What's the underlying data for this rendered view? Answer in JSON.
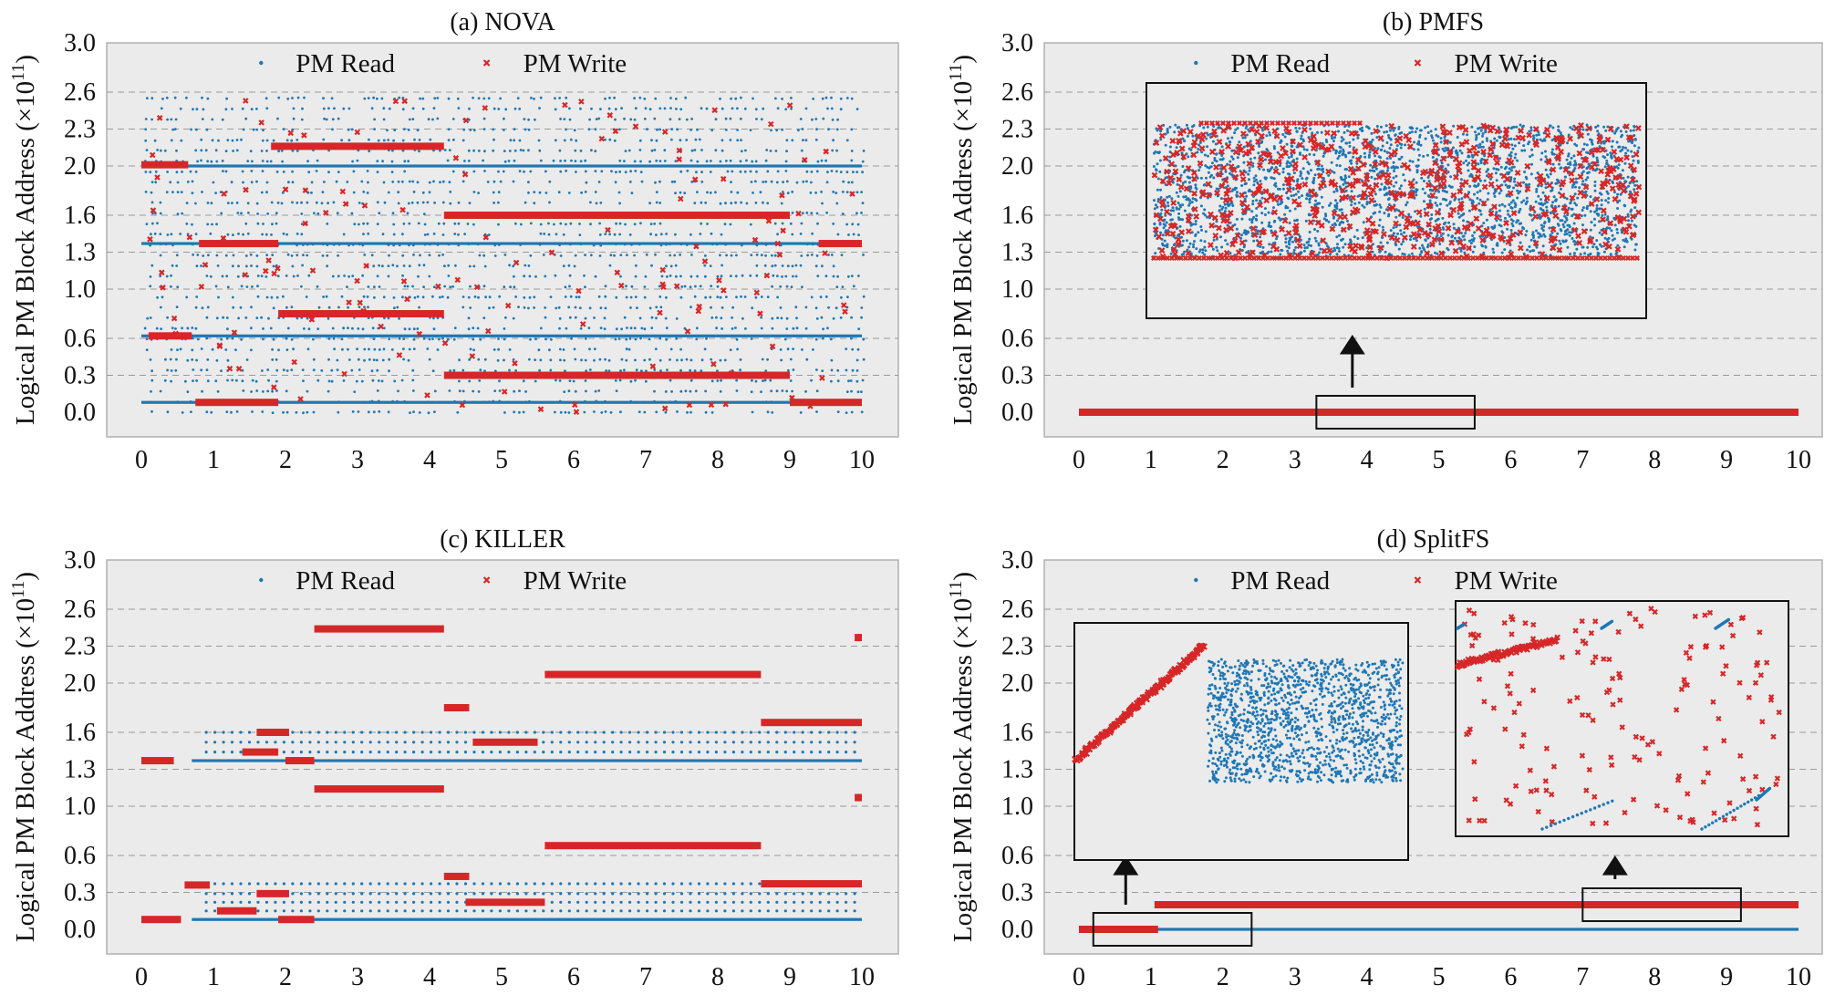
{
  "figure": {
    "legend_read": "PM Read",
    "legend_write": "PM Write",
    "ylabel_main": "Logical PM Block Address (×10",
    "ylabel_exp": "11",
    "ylabel_close": ")"
  },
  "chart_data": [
    {
      "id": "nova",
      "type": "scatter",
      "title": "(a) NOVA",
      "xticks": [
        "0",
        "1",
        "2",
        "3",
        "4",
        "5",
        "6",
        "7",
        "8",
        "9",
        "10"
      ],
      "yticks": [
        "0.0",
        "0.3",
        "0.6",
        "1.0",
        "1.3",
        "1.6",
        "2.0",
        "2.3",
        "2.6",
        "3.0"
      ],
      "xlim": [
        -0.5,
        10.5
      ],
      "ylim": [
        -0.2,
        3.0
      ],
      "grid": true,
      "legend_position": "top",
      "series": [
        {
          "name": "PM Read",
          "color": "#1f77b4",
          "marker": "dot",
          "bands_y": [
            2.0,
            1.37,
            0.62,
            0.08
          ],
          "scatter_y_range": [
            0.0,
            2.55
          ],
          "x_range": [
            0.0,
            10.0
          ]
        },
        {
          "name": "PM Write",
          "color": "#d62728",
          "marker": "x",
          "segments": [
            {
              "y": 2.01,
              "x": [
                0.0,
                0.65
              ]
            },
            {
              "y": 0.62,
              "x": [
                0.1,
                0.7
              ]
            },
            {
              "y": 1.37,
              "x": [
                0.8,
                1.9
              ]
            },
            {
              "y": 0.08,
              "x": [
                0.75,
                1.9
              ]
            },
            {
              "y": 2.16,
              "x": [
                1.8,
                4.2
              ]
            },
            {
              "y": 0.8,
              "x": [
                1.9,
                4.2
              ]
            },
            {
              "y": 1.6,
              "x": [
                4.2,
                9.0
              ]
            },
            {
              "y": 0.3,
              "x": [
                4.2,
                9.0
              ]
            },
            {
              "y": 1.37,
              "x": [
                9.4,
                10.0
              ]
            },
            {
              "y": 0.08,
              "x": [
                9.0,
                10.0
              ]
            }
          ]
        }
      ]
    },
    {
      "id": "pmfs",
      "type": "scatter",
      "title": "(b) PMFS",
      "xticks": [
        "0",
        "1",
        "2",
        "3",
        "4",
        "5",
        "6",
        "7",
        "8",
        "9",
        "10"
      ],
      "yticks": [
        "0.0",
        "0.3",
        "0.6",
        "1.0",
        "1.3",
        "1.6",
        "2.0",
        "2.3",
        "2.6",
        "3.0"
      ],
      "xlim": [
        -0.5,
        10.5
      ],
      "ylim": [
        -0.2,
        3.0
      ],
      "grid": true,
      "legend_position": "top",
      "zoom_region_x": [
        3.3,
        5.5
      ],
      "series": [
        {
          "name": "PM Read",
          "color": "#1f77b4",
          "marker": "dot",
          "y": 0.0,
          "x_range": [
            0.0,
            10.0
          ]
        },
        {
          "name": "PM Write",
          "color": "#d62728",
          "marker": "x",
          "y": 0.0,
          "x_range": [
            0.0,
            10.0
          ]
        }
      ]
    },
    {
      "id": "killer",
      "type": "scatter",
      "title": "(c) KILLER",
      "xticks": [
        "0",
        "1",
        "2",
        "3",
        "4",
        "5",
        "6",
        "7",
        "8",
        "9",
        "10"
      ],
      "yticks": [
        "0.0",
        "0.3",
        "0.6",
        "1.0",
        "1.3",
        "1.6",
        "2.0",
        "2.3",
        "2.6",
        "3.0"
      ],
      "xlim": [
        -0.5,
        10.5
      ],
      "ylim": [
        -0.2,
        3.0
      ],
      "grid": true,
      "legend_position": "top",
      "series": [
        {
          "name": "PM Read",
          "color": "#1f77b4",
          "marker": "dot",
          "bands_y": [
            1.37,
            0.08
          ],
          "dotted_rows_y": [
            1.6,
            1.52,
            1.44,
            0.37,
            0.29,
            0.22,
            0.15
          ]
        },
        {
          "name": "PM Write",
          "color": "#d62728",
          "marker": "x",
          "segments": [
            {
              "y": 1.37,
              "x": [
                0.0,
                0.45
              ]
            },
            {
              "y": 0.08,
              "x": [
                0.0,
                0.55
              ]
            },
            {
              "y": 0.36,
              "x": [
                0.6,
                0.95
              ]
            },
            {
              "y": 0.15,
              "x": [
                1.05,
                1.6
              ]
            },
            {
              "y": 0.29,
              "x": [
                1.6,
                2.05
              ]
            },
            {
              "y": 1.6,
              "x": [
                1.6,
                2.05
              ]
            },
            {
              "y": 1.44,
              "x": [
                1.4,
                1.9
              ]
            },
            {
              "y": 1.37,
              "x": [
                2.0,
                2.4
              ]
            },
            {
              "y": 0.08,
              "x": [
                1.9,
                2.4
              ]
            },
            {
              "y": 2.44,
              "x": [
                2.4,
                4.2
              ]
            },
            {
              "y": 1.14,
              "x": [
                2.4,
                4.2
              ]
            },
            {
              "y": 1.8,
              "x": [
                4.2,
                4.55
              ]
            },
            {
              "y": 0.43,
              "x": [
                4.2,
                4.55
              ]
            },
            {
              "y": 1.52,
              "x": [
                4.6,
                5.5
              ]
            },
            {
              "y": 0.22,
              "x": [
                4.5,
                5.6
              ]
            },
            {
              "y": 2.07,
              "x": [
                5.6,
                8.6
              ]
            },
            {
              "y": 0.68,
              "x": [
                5.6,
                8.6
              ]
            },
            {
              "y": 1.68,
              "x": [
                8.6,
                10.0
              ]
            },
            {
              "y": 0.37,
              "x": [
                8.6,
                10.0
              ]
            },
            {
              "y": 2.37,
              "x": [
                9.9,
                10.0
              ]
            },
            {
              "y": 1.07,
              "x": [
                9.9,
                10.0
              ]
            }
          ]
        }
      ]
    },
    {
      "id": "splitfs",
      "type": "scatter",
      "title": "(d) SplitFS",
      "xticks": [
        "0",
        "1",
        "2",
        "3",
        "4",
        "5",
        "6",
        "7",
        "8",
        "9",
        "10"
      ],
      "yticks": [
        "0.0",
        "0.3",
        "0.6",
        "1.0",
        "1.3",
        "1.6",
        "2.0",
        "2.3",
        "2.6",
        "3.0"
      ],
      "xlim": [
        -0.5,
        10.5
      ],
      "ylim": [
        -0.2,
        3.0
      ],
      "grid": true,
      "legend_position": "top",
      "zoom_regions_x": [
        [
          0.2,
          2.4
        ],
        [
          7.0,
          9.2
        ]
      ],
      "series": [
        {
          "name": "PM Read",
          "color": "#1f77b4",
          "marker": "dot",
          "y": 0.0,
          "x_range": [
            1.0,
            10.0
          ]
        },
        {
          "name": "PM Write",
          "color": "#d62728",
          "marker": "x",
          "segments": [
            {
              "y": 0.0,
              "x": [
                0.0,
                1.1
              ]
            },
            {
              "y": 0.2,
              "x": [
                1.05,
                10.0
              ]
            }
          ]
        }
      ]
    }
  ]
}
